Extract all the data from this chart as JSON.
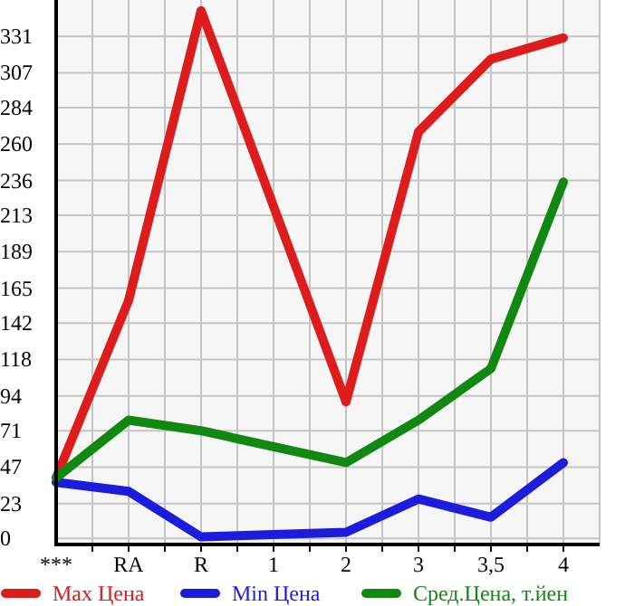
{
  "chart_data": {
    "type": "line",
    "categories": [
      "***",
      "RA",
      "R",
      "1",
      "2",
      "3",
      "3,5",
      "4"
    ],
    "series": [
      {
        "name": "Max Цена",
        "color": "#dd1c1c",
        "values": [
          40,
          157,
          348,
          null,
          90,
          268,
          316,
          330
        ]
      },
      {
        "name": "Min Цена",
        "color": "#1c1cdd",
        "values": [
          37,
          31,
          1,
          null,
          4,
          26,
          14,
          50
        ]
      },
      {
        "name": "Сред.Цена, т.йен",
        "color": "#118811",
        "values": [
          40,
          78,
          71,
          null,
          50,
          78,
          112,
          235
        ]
      }
    ],
    "ylim": [
      -4,
      355
    ],
    "yticks": [
      0,
      23,
      47,
      71,
      94,
      118,
      142,
      165,
      189,
      213,
      236,
      260,
      284,
      307,
      331
    ],
    "grid": true,
    "legend": "bottom",
    "marker": "none",
    "line_style": "solid"
  }
}
